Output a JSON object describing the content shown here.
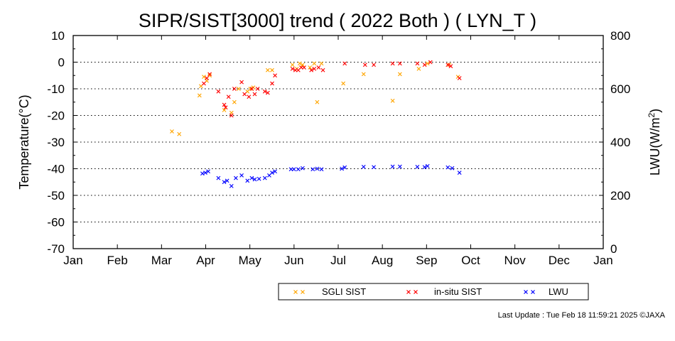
{
  "chart_data": {
    "type": "scatter",
    "title": "SIPR/SIST[3000] trend ( 2022 Both ) ( LYN_T )",
    "ylabel": "Temperature(°C)",
    "y2label_main": "LWU(W/m",
    "y2label_sup": "2",
    "y2label_end": ")",
    "ylim": [
      -70,
      10
    ],
    "y2lim": [
      0,
      800
    ],
    "yticks": [
      "10",
      "0",
      "-10",
      "-20",
      "-30",
      "-40",
      "-50",
      "-60",
      "-70"
    ],
    "y2ticks": [
      "800",
      "600",
      "400",
      "200",
      "0"
    ],
    "months": [
      "Jan",
      "Feb",
      "Mar",
      "Apr",
      "May",
      "Jun",
      "Jul",
      "Aug",
      "Sep",
      "Oct",
      "Nov",
      "Dec",
      "Jan"
    ],
    "grid": "dotted horizontal",
    "marker": "×",
    "legend_position": "bottom-right, below plot",
    "series": [
      {
        "name": "SGLI SIST",
        "color": "#ffa500",
        "axis": "left",
        "points": [
          [
            "2022-03-10",
            -26
          ],
          [
            "2022-03-15",
            -27
          ],
          [
            "2022-03-29",
            -12.5
          ],
          [
            "2022-03-30",
            -9
          ],
          [
            "2022-04-01",
            -5.5
          ],
          [
            "2022-04-03",
            -7
          ],
          [
            "2022-04-05",
            -5
          ],
          [
            "2022-04-15",
            -18
          ],
          [
            "2022-04-20",
            -19
          ],
          [
            "2022-04-22",
            -15
          ],
          [
            "2022-04-25",
            -10
          ],
          [
            "2022-05-01",
            -11
          ],
          [
            "2022-05-03",
            -10
          ],
          [
            "2022-05-05",
            -9.5
          ],
          [
            "2022-05-15",
            -3
          ],
          [
            "2022-05-18",
            -3
          ],
          [
            "2022-06-01",
            -1
          ],
          [
            "2022-06-04",
            -2.5
          ],
          [
            "2022-06-06",
            -0.5
          ],
          [
            "2022-06-08",
            -1
          ],
          [
            "2022-06-13",
            -2
          ],
          [
            "2022-06-16",
            -0.5
          ],
          [
            "2022-06-18",
            -15
          ],
          [
            "2022-06-21",
            -0.5
          ],
          [
            "2022-07-06",
            -8
          ],
          [
            "2022-07-20",
            -4.5
          ],
          [
            "2022-08-09",
            -14.5
          ],
          [
            "2022-08-14",
            -4.5
          ],
          [
            "2022-08-27",
            -2.5
          ],
          [
            "2022-09-02",
            -0.5
          ],
          [
            "2022-09-17",
            -1
          ],
          [
            "2022-09-23",
            -5.5
          ]
        ]
      },
      {
        "name": "in-situ SIST",
        "color": "#ff0000",
        "axis": "left",
        "points": [
          [
            "2022-04-01",
            -8
          ],
          [
            "2022-04-03",
            -6
          ],
          [
            "2022-04-05",
            -4.5
          ],
          [
            "2022-04-11",
            -11
          ],
          [
            "2022-04-15",
            -16
          ],
          [
            "2022-04-16",
            -17
          ],
          [
            "2022-04-18",
            -13
          ],
          [
            "2022-04-20",
            -20
          ],
          [
            "2022-04-22",
            -10
          ],
          [
            "2022-04-27",
            -7.5
          ],
          [
            "2022-04-29",
            -12
          ],
          [
            "2022-05-02",
            -13
          ],
          [
            "2022-05-04",
            -10
          ],
          [
            "2022-05-06",
            -12
          ],
          [
            "2022-05-08",
            -10
          ],
          [
            "2022-05-13",
            -11
          ],
          [
            "2022-05-15",
            -11.5
          ],
          [
            "2022-05-18",
            -8
          ],
          [
            "2022-05-20",
            -5
          ],
          [
            "2022-06-01",
            -2.5
          ],
          [
            "2022-06-03",
            -3
          ],
          [
            "2022-06-05",
            -3
          ],
          [
            "2022-06-07",
            -2
          ],
          [
            "2022-06-09",
            -2
          ],
          [
            "2022-06-14",
            -3
          ],
          [
            "2022-06-16",
            -2.5
          ],
          [
            "2022-06-19",
            -2
          ],
          [
            "2022-06-22",
            -3
          ],
          [
            "2022-07-07",
            -0.5
          ],
          [
            "2022-07-21",
            -1
          ],
          [
            "2022-07-27",
            -1
          ],
          [
            "2022-08-09",
            -0.5
          ],
          [
            "2022-08-14",
            -0.5
          ],
          [
            "2022-08-26",
            -0.5
          ],
          [
            "2022-08-31",
            -1
          ],
          [
            "2022-09-04",
            0
          ],
          [
            "2022-09-16",
            -1
          ],
          [
            "2022-09-18",
            -1.5
          ],
          [
            "2022-09-24",
            -6
          ]
        ]
      },
      {
        "name": "LWU",
        "color": "#0000ff",
        "axis": "right",
        "points": [
          [
            "2022-03-31",
            282
          ],
          [
            "2022-04-02",
            285
          ],
          [
            "2022-04-04",
            290
          ],
          [
            "2022-04-11",
            265
          ],
          [
            "2022-04-15",
            250
          ],
          [
            "2022-04-17",
            255
          ],
          [
            "2022-04-20",
            235
          ],
          [
            "2022-04-23",
            265
          ],
          [
            "2022-04-27",
            275
          ],
          [
            "2022-05-01",
            255
          ],
          [
            "2022-05-04",
            265
          ],
          [
            "2022-05-06",
            260
          ],
          [
            "2022-05-09",
            262
          ],
          [
            "2022-05-13",
            265
          ],
          [
            "2022-05-16",
            275
          ],
          [
            "2022-05-18",
            285
          ],
          [
            "2022-05-20",
            290
          ],
          [
            "2022-05-31",
            298
          ],
          [
            "2022-06-02",
            298
          ],
          [
            "2022-06-05",
            298
          ],
          [
            "2022-06-08",
            302
          ],
          [
            "2022-06-15",
            298
          ],
          [
            "2022-06-18",
            300
          ],
          [
            "2022-06-21",
            298
          ],
          [
            "2022-07-05",
            300
          ],
          [
            "2022-07-07",
            305
          ],
          [
            "2022-07-20",
            307
          ],
          [
            "2022-07-27",
            306
          ],
          [
            "2022-08-09",
            308
          ],
          [
            "2022-08-14",
            308
          ],
          [
            "2022-08-26",
            307
          ],
          [
            "2022-08-31",
            306
          ],
          [
            "2022-09-02",
            310
          ],
          [
            "2022-09-16",
            305
          ],
          [
            "2022-09-19",
            302
          ],
          [
            "2022-09-24",
            285
          ]
        ]
      }
    ]
  },
  "footer": "Last Update : Tue Feb 18 11:59:21 2025  ©JAXA"
}
